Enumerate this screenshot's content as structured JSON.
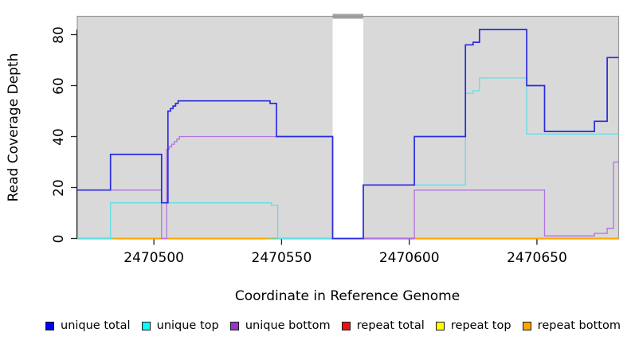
{
  "chart_data": {
    "type": "line",
    "subtype": "step-coverage-plot",
    "xlabel": "Coordinate in Reference Genome",
    "ylabel": "Read Coverage Depth",
    "xlim": [
      2470470,
      2470682
    ],
    "ylim": [
      0,
      87.5
    ],
    "grid": false,
    "panel_background": "#d9d9d9",
    "panel_border": "#999999",
    "no_data_gap": {
      "from": 2470570,
      "to": 2470582,
      "color": "#ffffff",
      "tab_color": "#a0a0a0"
    },
    "x_ticks": [
      {
        "value": 2470500,
        "label": "2470500"
      },
      {
        "value": 2470550,
        "label": "2470550"
      },
      {
        "value": 2470600,
        "label": "2470600"
      },
      {
        "value": 2470650,
        "label": "2470650"
      }
    ],
    "y_ticks": [
      {
        "value": 0,
        "label": "0"
      },
      {
        "value": 20,
        "label": "20"
      },
      {
        "value": 40,
        "label": "40"
      },
      {
        "value": 60,
        "label": "60"
      },
      {
        "value": 80,
        "label": "80"
      }
    ],
    "series": [
      {
        "name": "unique bottom",
        "color": "#b272e2",
        "width": 1.3,
        "points": [
          [
            2470470,
            19
          ],
          [
            2470503,
            0
          ],
          [
            2470505,
            35
          ],
          [
            2470506,
            36
          ],
          [
            2470507,
            37
          ],
          [
            2470508,
            38
          ],
          [
            2470509,
            39
          ],
          [
            2470510,
            40
          ],
          [
            2470570,
            0
          ],
          [
            2470602,
            19
          ],
          [
            2470653,
            1
          ],
          [
            2470672.5,
            2
          ],
          [
            2470677.5,
            4
          ],
          [
            2470680,
            30
          ]
        ],
        "xend": 2470682
      },
      {
        "name": "unique top",
        "color": "#5fe0e6",
        "width": 1.3,
        "points": [
          [
            2470470,
            0
          ],
          [
            2470483,
            14
          ],
          [
            2470546,
            13
          ],
          [
            2470548.5,
            0
          ],
          [
            2470582,
            21
          ],
          [
            2470622,
            57
          ],
          [
            2470625,
            58
          ],
          [
            2470627.5,
            63
          ],
          [
            2470646,
            41
          ]
        ],
        "xend": 2470682
      },
      {
        "name": "unique total",
        "color": "#2a2ae0",
        "width": 1.7,
        "points": [
          [
            2470470,
            19
          ],
          [
            2470483,
            33
          ],
          [
            2470503,
            14
          ],
          [
            2470505.5,
            50
          ],
          [
            2470506.5,
            51
          ],
          [
            2470507.5,
            52
          ],
          [
            2470508.5,
            53
          ],
          [
            2470509.5,
            54
          ],
          [
            2470545.5,
            53
          ],
          [
            2470548,
            40
          ],
          [
            2470570,
            0
          ],
          [
            2470582,
            21
          ],
          [
            2470602,
            40
          ],
          [
            2470622,
            76
          ],
          [
            2470625,
            77
          ],
          [
            2470627.5,
            82
          ],
          [
            2470646,
            60
          ],
          [
            2470653,
            42
          ],
          [
            2470672.5,
            46
          ],
          [
            2470677.5,
            71
          ]
        ],
        "xend": 2470682
      }
    ],
    "baseline_segments": [
      {
        "color": "#7fca7f",
        "from": 2470470,
        "to": 2470484
      },
      {
        "color": "#ffa500",
        "from": 2470484,
        "to": 2470545
      },
      {
        "color": "#7fca7f",
        "from": 2470545,
        "to": 2470570
      },
      {
        "color": "#d6487f",
        "from": 2470582,
        "to": 2470602
      },
      {
        "color": "#ffa500",
        "from": 2470602,
        "to": 2470682
      }
    ],
    "legend": [
      {
        "label": "unique total",
        "color": "#0000ee"
      },
      {
        "label": "unique top",
        "color": "#00ffff"
      },
      {
        "label": "unique bottom",
        "color": "#9932cc"
      },
      {
        "label": "repeat total",
        "color": "#ee1111"
      },
      {
        "label": "repeat top",
        "color": "#ffff00"
      },
      {
        "label": "repeat bottom",
        "color": "#ffa500"
      }
    ]
  }
}
